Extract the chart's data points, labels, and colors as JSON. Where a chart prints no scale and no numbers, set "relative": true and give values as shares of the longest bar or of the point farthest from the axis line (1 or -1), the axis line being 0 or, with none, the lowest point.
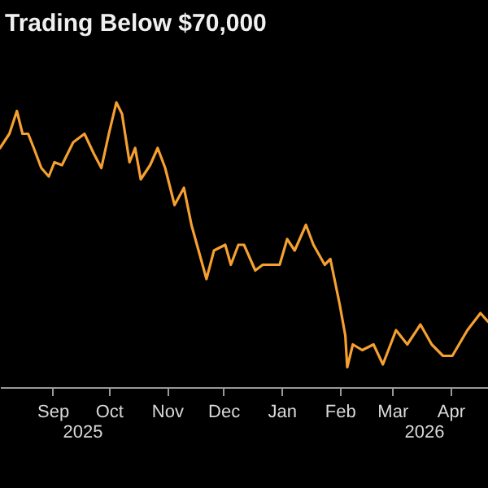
{
  "chart_data": {
    "type": "line",
    "title": "Trading Below $70,000",
    "relative": true,
    "x": [
      "2025-08-04",
      "2025-08-09",
      "2025-08-13",
      "2025-08-16",
      "2025-08-19",
      "2025-08-22",
      "2025-08-26",
      "2025-08-30",
      "2025-09-02",
      "2025-09-06",
      "2025-09-12",
      "2025-09-18",
      "2025-09-23",
      "2025-09-27",
      "2025-10-01",
      "2025-10-05",
      "2025-10-08",
      "2025-10-12",
      "2025-10-15",
      "2025-10-18",
      "2025-10-23",
      "2025-10-27",
      "2025-10-31",
      "2025-11-05",
      "2025-11-10",
      "2025-11-14",
      "2025-11-22",
      "2025-11-26",
      "2025-12-02",
      "2025-12-05",
      "2025-12-09",
      "2025-12-12",
      "2025-12-18",
      "2025-12-22",
      "2025-12-31",
      "2026-01-04",
      "2026-01-08",
      "2026-01-14",
      "2026-01-18",
      "2026-01-24",
      "2026-01-27",
      "2026-02-01",
      "2026-02-04",
      "2026-02-05",
      "2026-02-08",
      "2026-02-13",
      "2026-02-19",
      "2026-02-24",
      "2026-03-03",
      "2026-03-09",
      "2026-03-16",
      "2026-03-22",
      "2026-03-28",
      "2026-04-02",
      "2026-04-10",
      "2026-04-17",
      "2026-04-21"
    ],
    "series": [
      {
        "color": "#f5a030",
        "values": [
          0.84,
          0.89,
          0.97,
          0.89,
          0.89,
          0.84,
          0.77,
          0.74,
          0.79,
          0.78,
          0.86,
          0.89,
          0.82,
          0.77,
          0.89,
          1,
          0.96,
          0.79,
          0.84,
          0.73,
          0.78,
          0.84,
          0.77,
          0.64,
          0.7,
          0.57,
          0.38,
          0.48,
          0.5,
          0.43,
          0.5,
          0.5,
          0.41,
          0.43,
          0.43,
          0.52,
          0.48,
          0.57,
          0.5,
          0.43,
          0.45,
          0.29,
          0.18,
          0.07,
          0.15,
          0.13,
          0.15,
          0.08,
          0.2,
          0.15,
          0.22,
          0.15,
          0.11,
          0.11,
          0.2,
          0.26,
          0.23
        ]
      }
    ],
    "xlim": [
      "2025-08-04",
      "2026-04-21"
    ],
    "xticks": [
      {
        "value": "2025-09-01",
        "label": "Sep"
      },
      {
        "value": "2025-10-01",
        "label": "Oct"
      },
      {
        "value": "2025-11-01",
        "label": "Nov"
      },
      {
        "value": "2025-12-01",
        "label": "Dec"
      },
      {
        "value": "2026-01-01",
        "label": "Jan"
      },
      {
        "value": "2026-02-01",
        "label": "Feb"
      },
      {
        "value": "2026-03-01",
        "label": "Mar"
      },
      {
        "value": "2026-04-01",
        "label": "Apr"
      }
    ],
    "annotations": [
      "2025",
      "2026"
    ],
    "marker": "none",
    "line_style": "solid"
  }
}
